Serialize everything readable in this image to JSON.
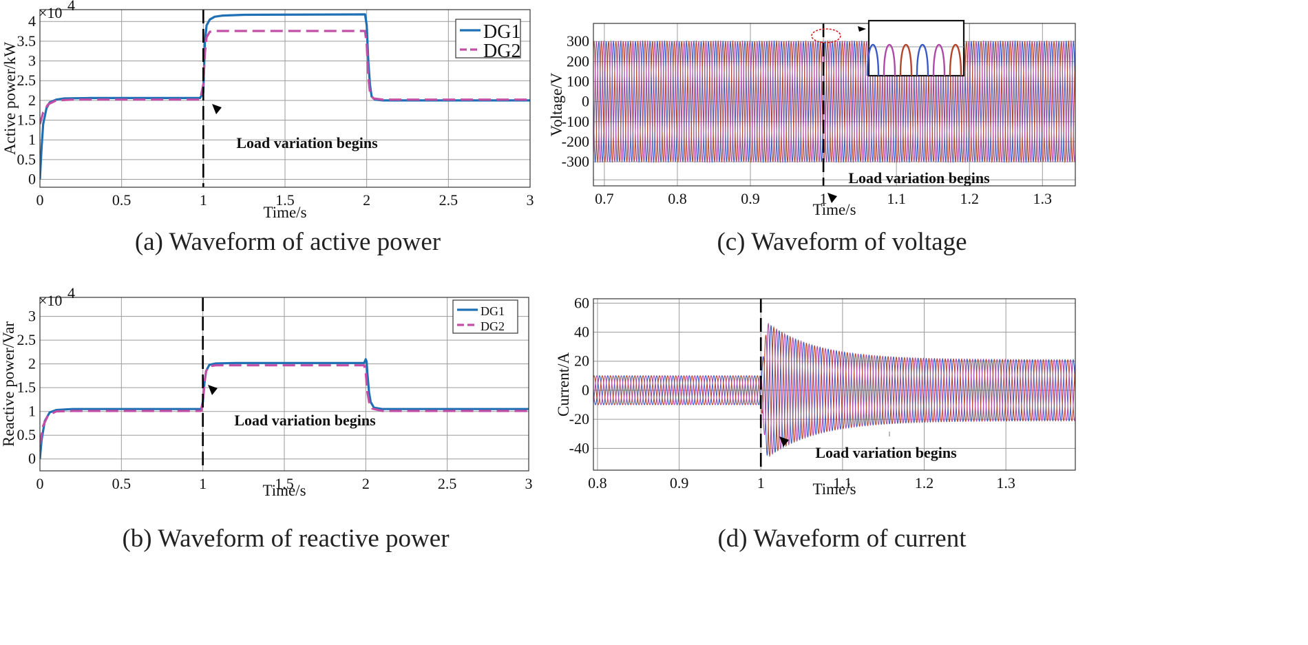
{
  "colors": {
    "dg1": "#1f6fb4",
    "dg2": "#c24fa6",
    "phase_a": "#3a59c4",
    "phase_b": "#b5452a",
    "phase_c": "#b04aa8",
    "marker": "#d62020"
  },
  "chart_data": [
    {
      "id": "a",
      "type": "line",
      "caption": "(a) Waveform of active power",
      "xlabel": "Time/s",
      "ylabel": "Active power/kW",
      "scale_label": "×10",
      "scale_exp": "4",
      "xlim": [
        0,
        3
      ],
      "ylim": [
        -0.2,
        4.3
      ],
      "xticks": [
        "0",
        "0.5",
        "1",
        "1.5",
        "2",
        "2.5",
        "3"
      ],
      "yticks": [
        "0",
        "0.5",
        "1",
        "1.5",
        "2",
        "2.5",
        "3",
        "3.5",
        "4"
      ],
      "grid": true,
      "legend": "top-right",
      "annotation": "Load variation begins",
      "event_x": 1,
      "series": [
        {
          "name": "DG1",
          "color_key": "dg1",
          "style": "solid",
          "x": [
            0,
            0.01,
            0.02,
            0.04,
            0.06,
            0.1,
            0.15,
            0.3,
            0.98,
            1.0,
            1.01,
            1.02,
            1.04,
            1.07,
            1.12,
            1.25,
            1.99,
            2.0,
            2.01,
            2.02,
            2.03,
            2.05,
            2.1,
            3.0
          ],
          "y": [
            0,
            0.8,
            1.4,
            1.8,
            1.95,
            2.02,
            2.05,
            2.06,
            2.06,
            2.2,
            3.5,
            3.9,
            4.05,
            4.12,
            4.15,
            4.17,
            4.18,
            3.9,
            3.0,
            2.4,
            2.1,
            2.02,
            2.0,
            2.0
          ]
        },
        {
          "name": "DG2",
          "color_key": "dg2",
          "style": "dashed",
          "x": [
            0,
            0.02,
            0.05,
            0.1,
            0.2,
            0.98,
            1.0,
            1.01,
            1.02,
            1.04,
            1.08,
            1.99,
            2.0,
            2.01,
            2.02,
            2.04,
            2.1,
            3.0
          ],
          "y": [
            1.4,
            1.7,
            1.9,
            2.0,
            2.02,
            2.02,
            2.4,
            3.2,
            3.6,
            3.74,
            3.76,
            3.76,
            3.4,
            2.6,
            2.2,
            2.05,
            2.02,
            2.02
          ]
        }
      ]
    },
    {
      "id": "b",
      "type": "line",
      "caption": "(b) Waveform of reactive power",
      "xlabel": "Time/s",
      "ylabel": "Reactive power/Var",
      "scale_label": "×10",
      "scale_exp": "4",
      "xlim": [
        0,
        3
      ],
      "ylim": [
        -0.25,
        3.4
      ],
      "xticks": [
        "0",
        "0.5",
        "1",
        "1.5",
        "2",
        "2.5",
        "3"
      ],
      "yticks": [
        "0",
        "0.5",
        "1",
        "1.5",
        "2",
        "2.5",
        "3"
      ],
      "grid": true,
      "legend": "top-right",
      "annotation": "Load variation begins",
      "event_x": 1,
      "series": [
        {
          "name": "DG1",
          "color_key": "dg1",
          "style": "solid",
          "x": [
            0,
            0.01,
            0.03,
            0.06,
            0.1,
            0.2,
            0.99,
            1.0,
            1.01,
            1.02,
            1.04,
            1.08,
            1.2,
            1.99,
            2.0,
            2.005,
            2.01,
            2.02,
            2.03,
            2.05,
            2.1,
            3.0
          ],
          "y": [
            0,
            0.4,
            0.8,
            0.98,
            1.03,
            1.05,
            1.05,
            1.2,
            1.6,
            1.85,
            1.98,
            2.01,
            2.02,
            2.02,
            2.1,
            2.05,
            1.8,
            1.4,
            1.2,
            1.08,
            1.05,
            1.05
          ]
        },
        {
          "name": "DG2",
          "color_key": "dg2",
          "style": "dashed",
          "x": [
            0,
            0.02,
            0.05,
            0.1,
            0.2,
            0.99,
            1.0,
            1.01,
            1.02,
            1.04,
            1.08,
            1.99,
            2.0,
            2.01,
            2.02,
            2.04,
            2.1,
            3.0
          ],
          "y": [
            0.3,
            0.7,
            0.92,
            1.0,
            1.01,
            1.01,
            1.2,
            1.6,
            1.85,
            1.95,
            1.97,
            1.97,
            1.8,
            1.4,
            1.2,
            1.06,
            1.01,
            1.01
          ]
        }
      ]
    },
    {
      "id": "c",
      "type": "line",
      "caption": "(c) Waveform of voltage",
      "xlabel": "Time/s",
      "ylabel": "Voltage/V",
      "xlim": [
        0.685,
        1.345
      ],
      "ylim": [
        -420,
        390
      ],
      "xticks": [
        "0.7",
        "0.8",
        "0.9",
        "1",
        "1.1",
        "1.2",
        "1.3"
      ],
      "yticks": [
        "-300",
        "-200",
        "-100",
        "0",
        "100",
        "200",
        "300"
      ],
      "grid": true,
      "annotation": "Load variation begins",
      "event_x": 1,
      "waveform": {
        "kind": "three-phase sine",
        "amplitude": 300,
        "frequency_hz": 100,
        "amplitude_after_event": 300
      },
      "inset": {
        "description": "zoomed peaks near t = 1 s"
      }
    },
    {
      "id": "d",
      "type": "line",
      "caption": "(d) Waveform of current",
      "xlabel": "Time/s",
      "ylabel": "Current/A",
      "xlim": [
        0.795,
        1.385
      ],
      "ylim": [
        -55,
        63
      ],
      "xticks": [
        "0.8",
        "0.9",
        "1",
        "1.1",
        "1.2",
        "1.3"
      ],
      "yticks": [
        "-40",
        "-20",
        "0",
        "20",
        "40",
        "60"
      ],
      "grid": true,
      "annotation": "Load variation begins",
      "event_x": 1,
      "waveform": {
        "kind": "three-phase sine",
        "amplitude_before": 10,
        "peak_after": 50,
        "amplitude_steady_after": 21,
        "frequency_hz": 100
      }
    }
  ]
}
